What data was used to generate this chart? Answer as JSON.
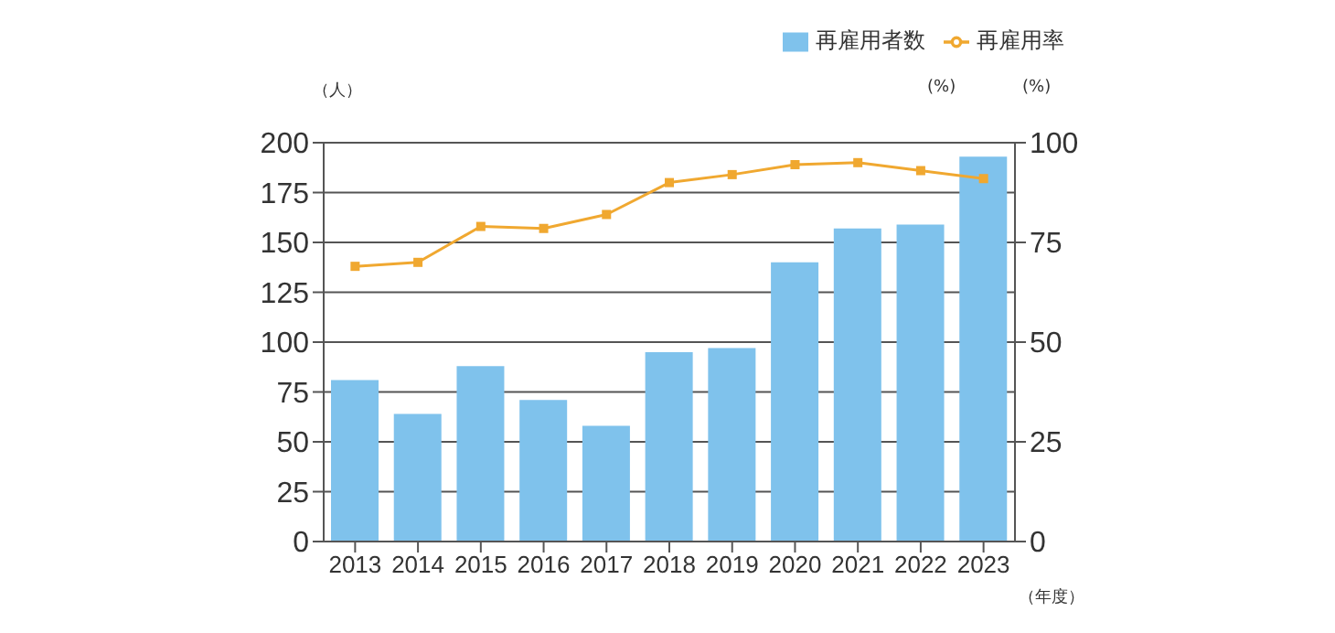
{
  "chart_data": {
    "type": "bar",
    "categories": [
      "2013",
      "2014",
      "2015",
      "2016",
      "2017",
      "2018",
      "2019",
      "2020",
      "2021",
      "2022",
      "2023"
    ],
    "series": [
      {
        "name": "再雇用者数",
        "color": "#7fc2ec",
        "values": [
          81,
          64,
          88,
          71,
          58,
          95,
          97,
          140,
          157,
          159,
          193
        ]
      },
      {
        "name": "再雇用率",
        "type": "line",
        "axis": "y2",
        "color": "#f0a830",
        "values": [
          69,
          70,
          79,
          78.5,
          82,
          90,
          92,
          94.5,
          95,
          93,
          91
        ]
      }
    ],
    "ylabel": "（人）",
    "y2label": "(%)",
    "xlabel": "（年度）",
    "annotations": [
      "(%)"
    ],
    "ylim": [
      0,
      200
    ],
    "yticks": [
      0,
      25,
      50,
      75,
      100,
      125,
      150,
      175,
      200
    ],
    "y2lim": [
      0,
      100
    ],
    "y2ticks": [
      0,
      25,
      50,
      75,
      100
    ],
    "grid": "y",
    "legend": "top right",
    "marker": "square"
  }
}
